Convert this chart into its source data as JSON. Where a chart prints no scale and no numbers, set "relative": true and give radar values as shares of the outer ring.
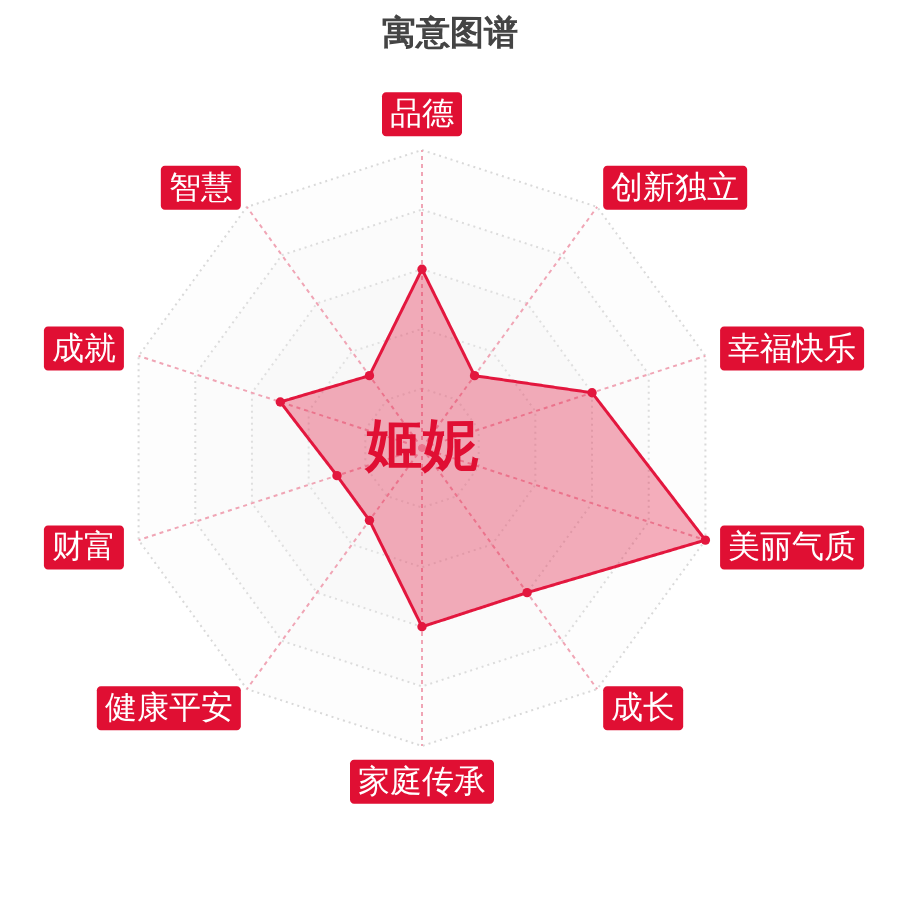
{
  "chart_data": {
    "type": "radar",
    "title": "寓意图谱",
    "categories": [
      "品德",
      "创新独立",
      "幸福快乐",
      "美丽气质",
      "成长",
      "家庭传承",
      "健康平安",
      "财富",
      "成就",
      "智慧"
    ],
    "relative": true,
    "series": [
      {
        "color": "#e3173e",
        "values": [
          0.6,
          0.3,
          0.6,
          1,
          0.6,
          0.6,
          0.3,
          0.3,
          0.5,
          0.3
        ]
      }
    ],
    "marker": "circle",
    "grid": true,
    "annotations": [
      "姬妮"
    ]
  }
}
